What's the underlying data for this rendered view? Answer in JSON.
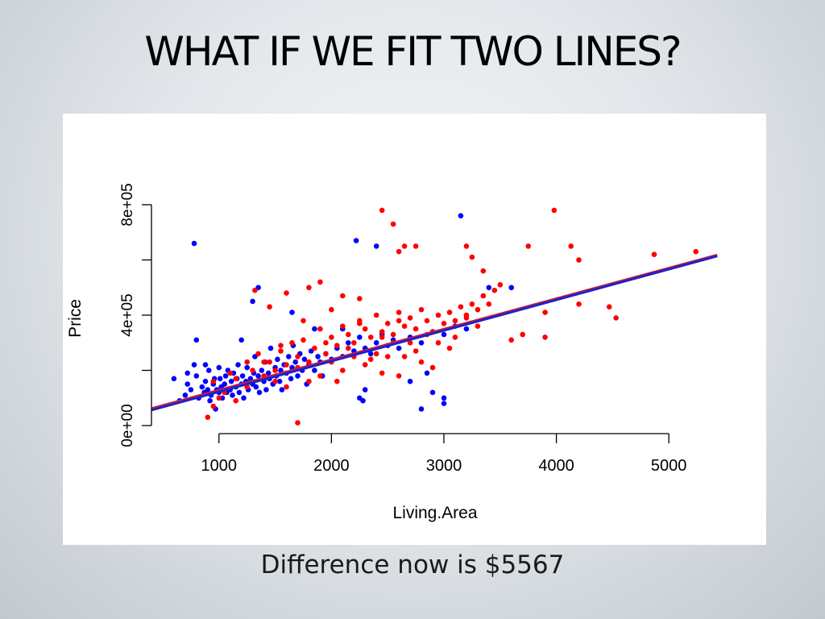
{
  "slide": {
    "title": "WHAT IF WE FIT TWO LINES?",
    "caption": "Difference now is $5567"
  },
  "colors": {
    "series_a": "#0000ff",
    "series_b": "#ff0000",
    "fit_line_a": "#2020c8",
    "fit_line_b": "#c81e3c",
    "axis": "#000000"
  },
  "chart_data": {
    "type": "scatter",
    "title": "",
    "xlabel": "Living.Area",
    "ylabel": "Price",
    "xlim": [
      400,
      5450
    ],
    "ylim": [
      0,
      800000
    ],
    "x_ticks": [
      1000,
      2000,
      3000,
      4000,
      5000
    ],
    "x_tick_labels": [
      "1000",
      "2000",
      "3000",
      "4000",
      "5000"
    ],
    "y_ticks": [
      0,
      200000,
      400000,
      600000,
      800000
    ],
    "y_tick_labels": [
      "0e+00",
      "",
      "4e+05",
      "",
      "8e+05"
    ],
    "grid": false,
    "legend": "none",
    "series": [
      {
        "color": "#0000ff",
        "points": [
          [
            600,
            170000
          ],
          [
            650,
            90000
          ],
          [
            700,
            110000
          ],
          [
            720,
            150000
          ],
          [
            750,
            130000
          ],
          [
            780,
            220000
          ],
          [
            800,
            180000
          ],
          [
            820,
            100000
          ],
          [
            850,
            140000
          ],
          [
            870,
            120000
          ],
          [
            880,
            160000
          ],
          [
            900,
            130000
          ],
          [
            910,
            200000
          ],
          [
            920,
            90000
          ],
          [
            930,
            110000
          ],
          [
            950,
            150000
          ],
          [
            960,
            170000
          ],
          [
            970,
            60000
          ],
          [
            980,
            130000
          ],
          [
            1000,
            120000
          ],
          [
            1010,
            170000
          ],
          [
            1020,
            140000
          ],
          [
            1030,
            100000
          ],
          [
            1050,
            150000
          ],
          [
            1060,
            180000
          ],
          [
            1070,
            120000
          ],
          [
            1080,
            200000
          ],
          [
            1100,
            130000
          ],
          [
            1110,
            160000
          ],
          [
            1120,
            110000
          ],
          [
            1130,
            190000
          ],
          [
            1150,
            140000
          ],
          [
            1160,
            170000
          ],
          [
            1170,
            220000
          ],
          [
            1180,
            120000
          ],
          [
            1200,
            150000
          ],
          [
            1210,
            180000
          ],
          [
            1220,
            100000
          ],
          [
            1240,
            160000
          ],
          [
            1250,
            210000
          ],
          [
            1260,
            130000
          ],
          [
            1280,
            170000
          ],
          [
            1300,
            150000
          ],
          [
            1310,
            190000
          ],
          [
            1320,
            250000
          ],
          [
            1330,
            140000
          ],
          [
            1350,
            180000
          ],
          [
            1360,
            120000
          ],
          [
            1380,
            200000
          ],
          [
            1400,
            160000
          ],
          [
            1410,
            230000
          ],
          [
            1420,
            130000
          ],
          [
            1440,
            190000
          ],
          [
            1450,
            170000
          ],
          [
            1460,
            280000
          ],
          [
            1480,
            150000
          ],
          [
            1500,
            210000
          ],
          [
            1510,
            180000
          ],
          [
            1520,
            240000
          ],
          [
            1540,
            160000
          ],
          [
            1550,
            200000
          ],
          [
            1560,
            130000
          ],
          [
            1580,
            220000
          ],
          [
            1600,
            190000
          ],
          [
            1620,
            250000
          ],
          [
            1640,
            170000
          ],
          [
            1650,
            210000
          ],
          [
            1660,
            290000
          ],
          [
            1680,
            230000
          ],
          [
            1700,
            180000
          ],
          [
            1720,
            260000
          ],
          [
            1740,
            200000
          ],
          [
            1760,
            240000
          ],
          [
            1780,
            150000
          ],
          [
            1800,
            220000
          ],
          [
            1820,
            270000
          ],
          [
            1850,
            200000
          ],
          [
            1880,
            250000
          ],
          [
            1900,
            230000
          ],
          [
            1920,
            180000
          ],
          [
            1950,
            260000
          ],
          [
            2000,
            240000
          ],
          [
            2050,
            280000
          ],
          [
            2100,
            250000
          ],
          [
            2150,
            300000
          ],
          [
            2200,
            270000
          ],
          [
            2250,
            320000
          ],
          [
            2300,
            280000
          ],
          [
            2350,
            260000
          ],
          [
            2400,
            300000
          ],
          [
            2450,
            330000
          ],
          [
            2500,
            290000
          ],
          [
            2550,
            310000
          ],
          [
            2600,
            280000
          ],
          [
            2700,
            320000
          ],
          [
            2800,
            300000
          ],
          [
            2900,
            340000
          ],
          [
            3000,
            330000
          ],
          [
            3100,
            360000
          ],
          [
            3200,
            350000
          ],
          [
            780,
            660000
          ],
          [
            1350,
            500000
          ],
          [
            1300,
            450000
          ],
          [
            1650,
            410000
          ],
          [
            2220,
            670000
          ],
          [
            2400,
            650000
          ],
          [
            2100,
            350000
          ],
          [
            3150,
            760000
          ],
          [
            2280,
            90000
          ],
          [
            2250,
            100000
          ],
          [
            2800,
            60000
          ],
          [
            3000,
            80000
          ],
          [
            3000,
            100000
          ],
          [
            2300,
            130000
          ],
          [
            2900,
            120000
          ],
          [
            2700,
            160000
          ],
          [
            2850,
            190000
          ],
          [
            1200,
            310000
          ],
          [
            1850,
            350000
          ],
          [
            3400,
            500000
          ],
          [
            3600,
            500000
          ],
          [
            800,
            310000
          ],
          [
            880,
            220000
          ],
          [
            720,
            190000
          ],
          [
            1000,
            210000
          ]
        ]
      },
      {
        "color": "#ff0000",
        "points": [
          [
            900,
            30000
          ],
          [
            950,
            70000
          ],
          [
            1050,
            120000
          ],
          [
            1150,
            170000
          ],
          [
            1250,
            140000
          ],
          [
            1300,
            200000
          ],
          [
            1350,
            260000
          ],
          [
            1400,
            180000
          ],
          [
            1450,
            230000
          ],
          [
            1500,
            200000
          ],
          [
            1550,
            270000
          ],
          [
            1600,
            220000
          ],
          [
            1650,
            300000
          ],
          [
            1700,
            10000
          ],
          [
            1700,
            250000
          ],
          [
            1750,
            310000
          ],
          [
            1800,
            230000
          ],
          [
            1850,
            280000
          ],
          [
            1900,
            350000
          ],
          [
            1950,
            260000
          ],
          [
            2000,
            320000
          ],
          [
            2050,
            290000
          ],
          [
            2100,
            360000
          ],
          [
            2150,
            330000
          ],
          [
            2200,
            300000
          ],
          [
            2250,
            380000
          ],
          [
            2300,
            350000
          ],
          [
            2350,
            320000
          ],
          [
            2400,
            400000
          ],
          [
            2450,
            340000
          ],
          [
            2500,
            370000
          ],
          [
            2550,
            330000
          ],
          [
            2600,
            410000
          ],
          [
            2650,
            360000
          ],
          [
            2700,
            390000
          ],
          [
            2750,
            350000
          ],
          [
            2800,
            420000
          ],
          [
            2850,
            380000
          ],
          [
            2900,
            340000
          ],
          [
            2950,
            400000
          ],
          [
            3000,
            370000
          ],
          [
            3050,
            410000
          ],
          [
            3100,
            380000
          ],
          [
            3150,
            430000
          ],
          [
            3200,
            400000
          ],
          [
            3250,
            440000
          ],
          [
            3300,
            420000
          ],
          [
            3350,
            470000
          ],
          [
            3400,
            440000
          ],
          [
            3450,
            490000
          ],
          [
            1320,
            490000
          ],
          [
            1450,
            430000
          ],
          [
            1600,
            480000
          ],
          [
            1800,
            500000
          ],
          [
            1900,
            520000
          ],
          [
            2100,
            470000
          ],
          [
            2250,
            460000
          ],
          [
            2450,
            780000
          ],
          [
            2550,
            730000
          ],
          [
            2650,
            650000
          ],
          [
            2600,
            630000
          ],
          [
            2750,
            650000
          ],
          [
            3200,
            650000
          ],
          [
            3250,
            610000
          ],
          [
            3350,
            560000
          ],
          [
            3500,
            510000
          ],
          [
            3750,
            650000
          ],
          [
            3900,
            410000
          ],
          [
            3980,
            780000
          ],
          [
            4130,
            650000
          ],
          [
            4200,
            600000
          ],
          [
            4200,
            440000
          ],
          [
            4470,
            430000
          ],
          [
            4530,
            390000
          ],
          [
            4870,
            620000
          ],
          [
            5240,
            630000
          ],
          [
            3700,
            330000
          ],
          [
            3900,
            320000
          ],
          [
            3600,
            310000
          ],
          [
            2950,
            300000
          ],
          [
            2700,
            300000
          ],
          [
            2500,
            250000
          ],
          [
            2300,
            220000
          ],
          [
            2100,
            200000
          ],
          [
            1900,
            180000
          ],
          [
            1800,
            160000
          ],
          [
            2600,
            180000
          ],
          [
            2800,
            230000
          ],
          [
            3050,
            280000
          ],
          [
            2400,
            260000
          ],
          [
            2200,
            250000
          ],
          [
            2000,
            230000
          ],
          [
            1950,
            300000
          ],
          [
            2150,
            280000
          ],
          [
            2350,
            240000
          ],
          [
            2550,
            300000
          ],
          [
            2750,
            270000
          ],
          [
            3300,
            360000
          ],
          [
            1700,
            210000
          ],
          [
            1500,
            160000
          ],
          [
            1400,
            230000
          ],
          [
            1550,
            290000
          ],
          [
            1250,
            230000
          ],
          [
            1100,
            190000
          ],
          [
            950,
            160000
          ],
          [
            1000,
            100000
          ],
          [
            1150,
            90000
          ],
          [
            1600,
            140000
          ],
          [
            2050,
            160000
          ],
          [
            2450,
            190000
          ],
          [
            2900,
            210000
          ],
          [
            3100,
            320000
          ],
          [
            1750,
            380000
          ],
          [
            2000,
            420000
          ],
          [
            2250,
            370000
          ],
          [
            2600,
            380000
          ],
          [
            2850,
            330000
          ],
          [
            3200,
            390000
          ],
          [
            2650,
            250000
          ],
          [
            2450,
            320000
          ]
        ]
      }
    ],
    "fit_lines": [
      {
        "color": "#c81e3c",
        "x": [
          400,
          5430
        ],
        "y": [
          62000,
          618000
        ]
      },
      {
        "color": "#2020c8",
        "x": [
          400,
          5430
        ],
        "y": [
          56000,
          614000
        ]
      }
    ]
  }
}
